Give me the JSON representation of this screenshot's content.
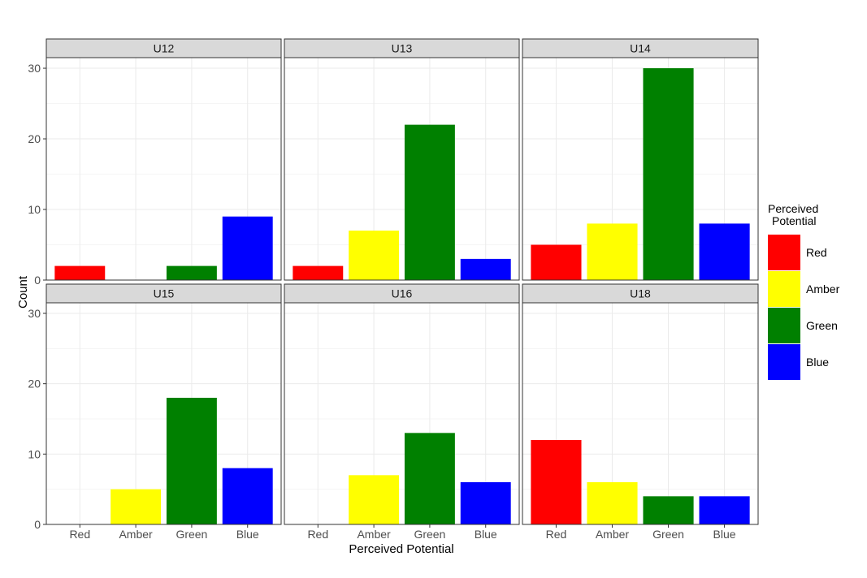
{
  "chart_data": {
    "type": "bar",
    "facet_layout": "2x3",
    "xlabel": "Perceived Potential",
    "ylabel": "Count",
    "ylim": [
      0,
      31.5
    ],
    "yticks": [
      0,
      10,
      20,
      30
    ],
    "categories": [
      "Red",
      "Amber",
      "Green",
      "Blue"
    ],
    "colors": {
      "Red": "#ff0000",
      "Amber": "#ffff00",
      "Green": "#008000",
      "Blue": "#0000ff"
    },
    "grid": true,
    "legend": {
      "title_lines": [
        "Perceived",
        "Potential"
      ],
      "entries": [
        "Red",
        "Amber",
        "Green",
        "Blue"
      ],
      "placement": "right"
    },
    "facets": [
      {
        "label": "U12",
        "values": [
          2,
          0,
          2,
          9
        ]
      },
      {
        "label": "U13",
        "values": [
          2,
          7,
          22,
          3
        ]
      },
      {
        "label": "U14",
        "values": [
          5,
          8,
          30,
          8
        ]
      },
      {
        "label": "U15",
        "values": [
          0,
          5,
          18,
          8
        ]
      },
      {
        "label": "U16",
        "values": [
          0,
          7,
          13,
          6
        ]
      },
      {
        "label": "U18",
        "values": [
          12,
          6,
          4,
          4
        ]
      }
    ]
  }
}
